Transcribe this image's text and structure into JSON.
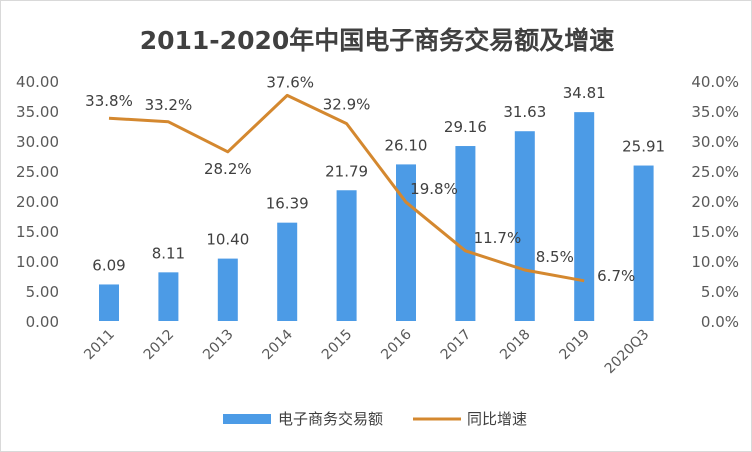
{
  "chart_data": {
    "type": "bar+line",
    "title": "2011-2020年中国电子商务交易额及增速",
    "categories": [
      "2011",
      "2012",
      "2013",
      "2014",
      "2015",
      "2016",
      "2017",
      "2018",
      "2019",
      "2020Q3"
    ],
    "series": [
      {
        "name": "电子商务交易额",
        "type": "bar",
        "axis": "left",
        "values": [
          6.09,
          8.11,
          10.4,
          16.39,
          21.79,
          26.1,
          29.16,
          31.63,
          34.81,
          25.91
        ],
        "labels": [
          "6.09",
          "8.11",
          "10.40",
          "16.39",
          "21.79",
          "26.10",
          "29.16",
          "31.63",
          "34.81",
          "25.91"
        ],
        "color": "#4C9BE6"
      },
      {
        "name": "同比增速",
        "type": "line",
        "axis": "right",
        "values": [
          33.8,
          33.2,
          28.2,
          37.6,
          32.9,
          19.8,
          11.7,
          8.5,
          6.7,
          null
        ],
        "labels": [
          "33.8%",
          "33.2%",
          "28.2%",
          "37.6%",
          "32.9%",
          "19.8%",
          "11.7%",
          "8.5%",
          "6.7%",
          null
        ],
        "color": "#D4882F"
      }
    ],
    "left_axis": {
      "range": [
        0,
        40
      ],
      "ticks": [
        "0.00",
        "5.00",
        "10.00",
        "15.00",
        "20.00",
        "25.00",
        "30.00",
        "35.00",
        "40.00"
      ]
    },
    "right_axis": {
      "range": [
        0,
        40
      ],
      "ticks": [
        "0.0%",
        "5.0%",
        "10.0%",
        "15.0%",
        "20.0%",
        "25.0%",
        "30.0%",
        "35.0%",
        "40.0%"
      ]
    },
    "grid": false,
    "legend": "bottom"
  }
}
